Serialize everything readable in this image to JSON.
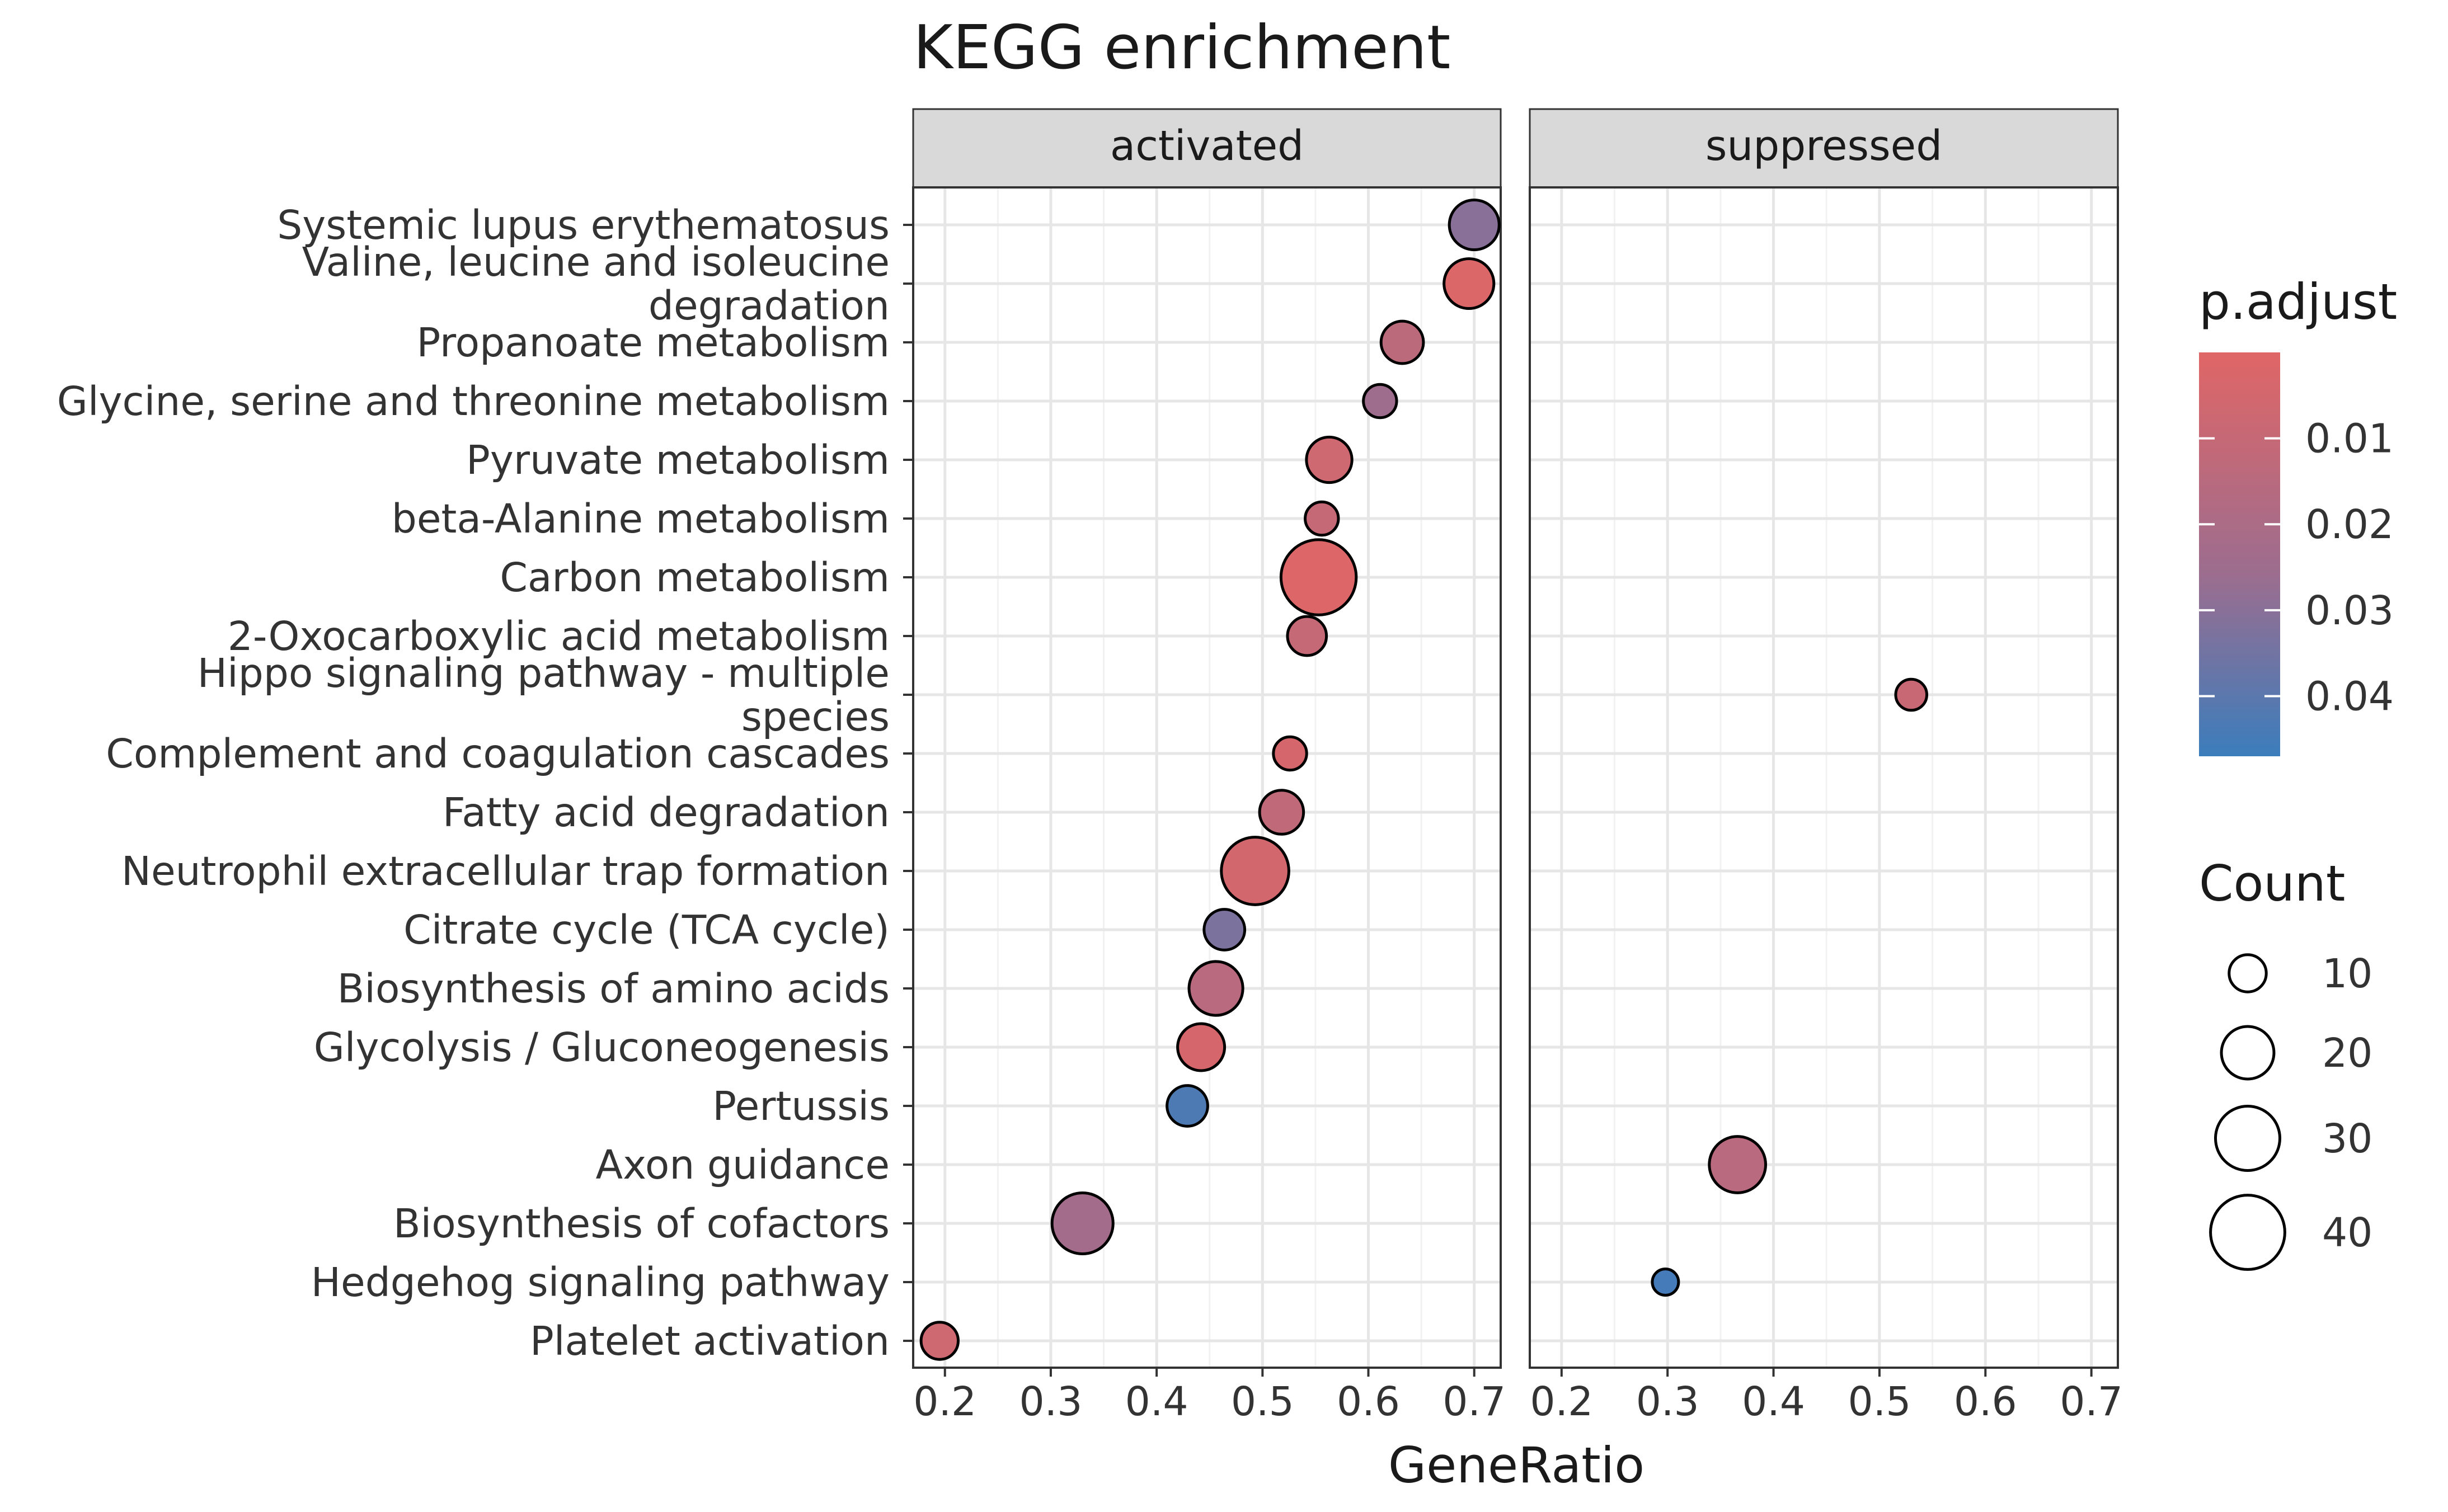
{
  "chart_data": {
    "type": "scatter",
    "title": "KEGG enrichment",
    "xlabel": "GeneRatio",
    "ylabel": "",
    "xlim": [
      0.17,
      0.725
    ],
    "xticks": [
      0.2,
      0.3,
      0.4,
      0.5,
      0.6,
      0.7
    ],
    "xtick_labels": [
      "0.2",
      "0.3",
      "0.4",
      "0.5",
      "0.6",
      "0.7"
    ],
    "grid": true,
    "facets": [
      "activated",
      "suppressed"
    ],
    "categories": [
      [
        "Systemic lupus erythematosus"
      ],
      [
        "Valine, leucine and isoleucine",
        "degradation"
      ],
      [
        "Propanoate metabolism"
      ],
      [
        "Glycine, serine and threonine metabolism"
      ],
      [
        "Pyruvate metabolism"
      ],
      [
        "beta-Alanine metabolism"
      ],
      [
        "Carbon metabolism"
      ],
      [
        "2-Oxocarboxylic acid metabolism"
      ],
      [
        "Hippo signaling pathway - multiple",
        "species"
      ],
      [
        "Complement and coagulation cascades"
      ],
      [
        "Fatty acid degradation"
      ],
      [
        "Neutrophil extracellular trap formation"
      ],
      [
        "Citrate cycle (TCA cycle)"
      ],
      [
        "Biosynthesis of amino acids"
      ],
      [
        "Glycolysis / Gluconeogenesis"
      ],
      [
        "Pertussis"
      ],
      [
        "Axon guidance"
      ],
      [
        "Biosynthesis of cofactors"
      ],
      [
        "Hedgehog signaling pathway"
      ],
      [
        "Platelet activation"
      ]
    ],
    "points": [
      {
        "facet": "activated",
        "category": 0,
        "gene_ratio": 0.7,
        "count": 18,
        "p_adjust": 0.03
      },
      {
        "facet": "activated",
        "category": 1,
        "gene_ratio": 0.695,
        "count": 18,
        "p_adjust": 0.002
      },
      {
        "facet": "activated",
        "category": 2,
        "gene_ratio": 0.632,
        "count": 13,
        "p_adjust": 0.014
      },
      {
        "facet": "activated",
        "category": 3,
        "gene_ratio": 0.611,
        "count": 8,
        "p_adjust": 0.025
      },
      {
        "facet": "activated",
        "category": 4,
        "gene_ratio": 0.563,
        "count": 15,
        "p_adjust": 0.007
      },
      {
        "facet": "activated",
        "category": 5,
        "gene_ratio": 0.556,
        "count": 8,
        "p_adjust": 0.01
      },
      {
        "facet": "activated",
        "category": 6,
        "gene_ratio": 0.553,
        "count": 41,
        "p_adjust": 0.001
      },
      {
        "facet": "activated",
        "category": 7,
        "gene_ratio": 0.542,
        "count": 11,
        "p_adjust": 0.01
      },
      {
        "facet": "activated",
        "category": 9,
        "gene_ratio": 0.526,
        "count": 8,
        "p_adjust": 0.004
      },
      {
        "facet": "activated",
        "category": 10,
        "gene_ratio": 0.518,
        "count": 14,
        "p_adjust": 0.012
      },
      {
        "facet": "activated",
        "category": 11,
        "gene_ratio": 0.493,
        "count": 33,
        "p_adjust": 0.005
      },
      {
        "facet": "activated",
        "category": 12,
        "gene_ratio": 0.464,
        "count": 12,
        "p_adjust": 0.033
      },
      {
        "facet": "activated",
        "category": 13,
        "gene_ratio": 0.456,
        "count": 21,
        "p_adjust": 0.015
      },
      {
        "facet": "activated",
        "category": 14,
        "gene_ratio": 0.442,
        "count": 16,
        "p_adjust": 0.004
      },
      {
        "facet": "activated",
        "category": 15,
        "gene_ratio": 0.429,
        "count": 12,
        "p_adjust": 0.043
      },
      {
        "facet": "activated",
        "category": 17,
        "gene_ratio": 0.33,
        "count": 27,
        "p_adjust": 0.023
      },
      {
        "facet": "activated",
        "category": 19,
        "gene_ratio": 0.195,
        "count": 10,
        "p_adjust": 0.007
      },
      {
        "facet": "suppressed",
        "category": 8,
        "gene_ratio": 0.53,
        "count": 7,
        "p_adjust": 0.009
      },
      {
        "facet": "suppressed",
        "category": 16,
        "gene_ratio": 0.366,
        "count": 23,
        "p_adjust": 0.015
      },
      {
        "facet": "suppressed",
        "category": 18,
        "gene_ratio": 0.298,
        "count": 5,
        "p_adjust": 0.045
      }
    ],
    "color_legend": {
      "title": "p.adjust",
      "ticks": [
        0.01,
        0.02,
        0.03,
        0.04
      ],
      "tick_labels": [
        "0.01",
        "0.02",
        "0.03",
        "0.04"
      ],
      "range": [
        0.0,
        0.047
      ],
      "low_color": "#e06666",
      "mid_color": "#9c6d8f",
      "high_color": "#3b7dbc"
    },
    "size_legend": {
      "title": "Count",
      "values": [
        10,
        20,
        30,
        40
      ],
      "labels": [
        "10",
        "20",
        "30",
        "40"
      ]
    }
  }
}
